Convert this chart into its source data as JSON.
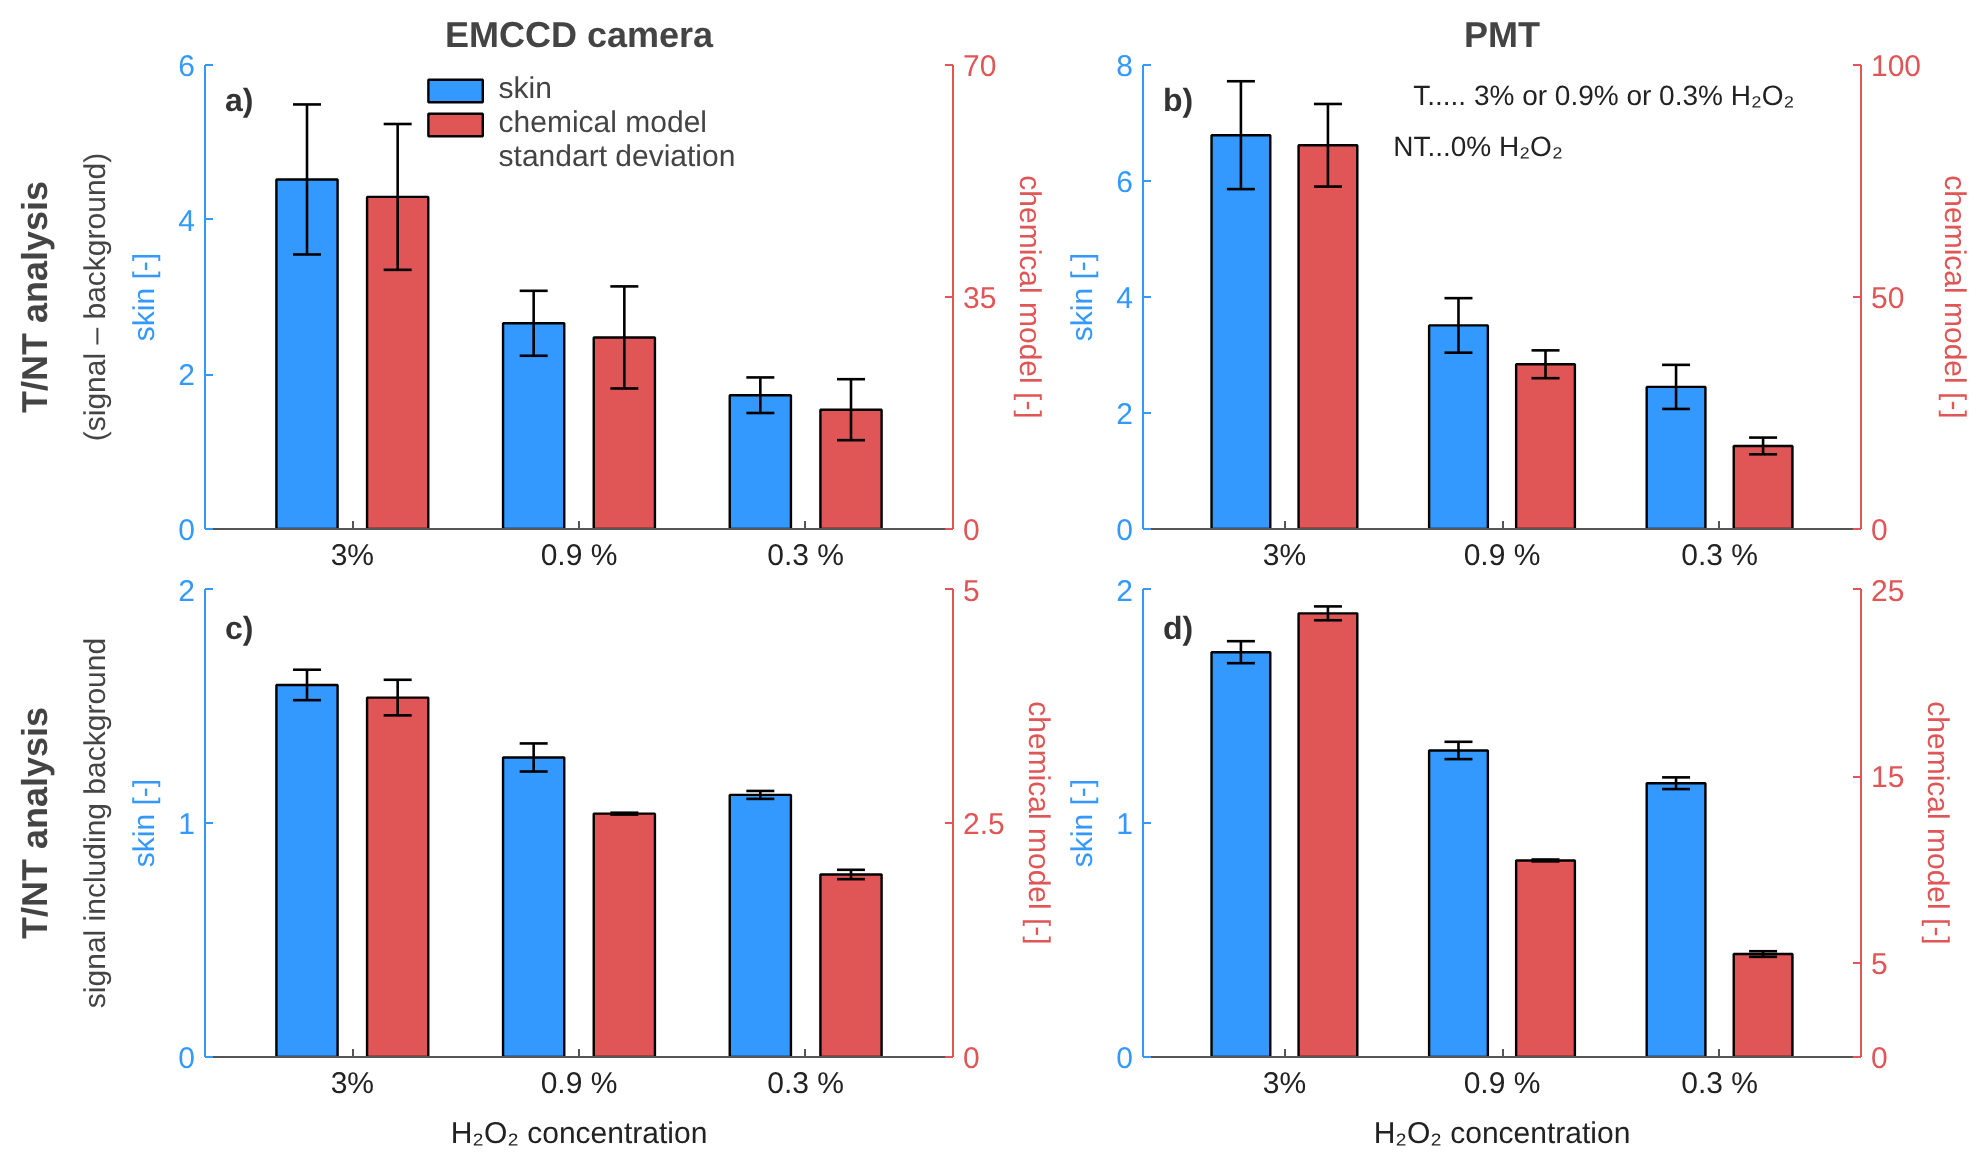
{
  "chart_data": [
    {
      "type": "bar",
      "title": "EMCCD camera",
      "ylabel": "skin [-]",
      "y2label": "chemical model [-]",
      "categories": [
        "3%",
        "0.9 %",
        "0.3 %"
      ],
      "series": [
        {
          "name": "skin",
          "color": "#3399ff",
          "values": [
            4.52,
            2.66,
            1.73
          ],
          "errors": [
            0.97,
            0.42,
            0.23
          ]
        },
        {
          "name": "chemical model",
          "color": "#e05555",
          "axis": "y2",
          "values": [
            50.1,
            28.9,
            18.0
          ],
          "errors": [
            11.0,
            7.7,
            4.6
          ]
        }
      ],
      "ylim": [
        0,
        6
      ],
      "yticks": [
        0,
        2,
        4,
        6
      ],
      "y2lim": [
        0,
        70
      ],
      "y2ticks": [
        0,
        35,
        70
      ],
      "legend": "top",
      "grid": false,
      "annotations": [
        "a)",
        "standart deviation",
        "T/NT analysis",
        "(signal – background)"
      ]
    },
    {
      "type": "bar",
      "title": "PMT",
      "ylabel": "skin [-]",
      "y2label": "chemical model [-]",
      "categories": [
        "3%",
        "0.9 %",
        "0.3 %"
      ],
      "series": [
        {
          "color": "#3399ff",
          "values": [
            6.79,
            3.51,
            2.45
          ],
          "errors": [
            0.93,
            0.47,
            0.38
          ]
        },
        {
          "color": "#e05555",
          "axis": "y2",
          "values": [
            82.7,
            35.5,
            17.9
          ],
          "errors": [
            8.9,
            3.0,
            1.8
          ]
        }
      ],
      "ylim": [
        0,
        8
      ],
      "yticks": [
        0,
        2,
        4,
        6,
        8
      ],
      "y2lim": [
        0,
        100
      ],
      "y2ticks": [
        0,
        50,
        100
      ],
      "grid": false,
      "annotations": [
        "b)",
        "T..... 3% or 0.9% or 0.3% H₂O₂",
        "NT...0% H₂O₂"
      ]
    },
    {
      "type": "bar",
      "xlabel": "H₂O₂ concentration",
      "ylabel": "skin [-]",
      "y2label": "chemical model [-]",
      "categories": [
        "3%",
        "0.9 %",
        "0.3 %"
      ],
      "series": [
        {
          "color": "#3399ff",
          "values": [
            1.59,
            1.28,
            1.12
          ],
          "errors": [
            0.065,
            0.06,
            0.017
          ]
        },
        {
          "color": "#e05555",
          "axis": "y2",
          "values": [
            3.84,
            2.6,
            1.95
          ],
          "errors": [
            0.19,
            0.01,
            0.05
          ]
        }
      ],
      "ylim": [
        0,
        2
      ],
      "yticks": [
        0,
        1,
        2
      ],
      "y2lim": [
        0,
        5
      ],
      "y2ticks": [
        0,
        2.5,
        5
      ],
      "grid": false,
      "annotations": [
        "c)",
        "T/NT analysis",
        "signal including background"
      ]
    },
    {
      "type": "bar",
      "xlabel": "H₂O₂ concentration",
      "ylabel": "skin [-]",
      "y2label": "chemical model [-]",
      "categories": [
        "3%",
        "0.9 %",
        "0.3 %"
      ],
      "series": [
        {
          "color": "#3399ff",
          "values": [
            1.73,
            1.31,
            1.17
          ],
          "errors": [
            0.047,
            0.037,
            0.025
          ]
        },
        {
          "color": "#e05555",
          "axis": "y2",
          "values": [
            23.7,
            10.5,
            5.5
          ],
          "errors": [
            0.37,
            0.05,
            0.15
          ]
        }
      ],
      "ylim": [
        0,
        2
      ],
      "yticks": [
        0,
        1,
        2
      ],
      "y2lim": [
        0,
        25
      ],
      "y2ticks": [
        0,
        5,
        15,
        25
      ],
      "grid": false,
      "annotations": [
        "d)"
      ]
    }
  ]
}
